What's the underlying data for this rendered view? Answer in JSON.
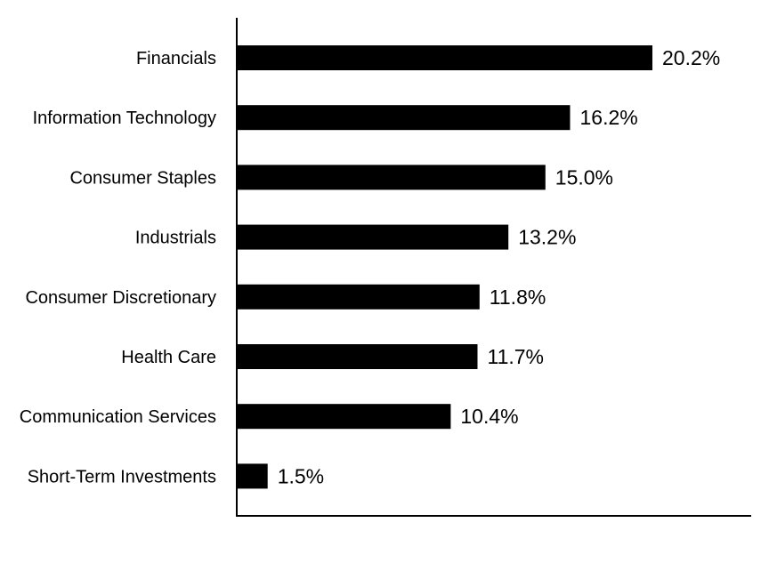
{
  "chart_data": {
    "type": "bar",
    "orientation": "horizontal",
    "categories": [
      "Financials",
      "Information Technology",
      "Consumer Staples",
      "Industrials",
      "Consumer Discretionary",
      "Health Care",
      "Communication Services",
      "Short-Term Investments"
    ],
    "values": [
      20.2,
      16.2,
      15.0,
      13.2,
      11.8,
      11.7,
      10.4,
      1.5
    ],
    "value_labels": [
      "20.2%",
      "16.2%",
      "15.0%",
      "13.2%",
      "11.8%",
      "11.7%",
      "10.4%",
      "1.5%"
    ],
    "title": "",
    "xlabel": "",
    "ylabel": "",
    "xlim": [
      0,
      25
    ],
    "grid": false,
    "legend": "none",
    "bar_color": "#000000"
  }
}
